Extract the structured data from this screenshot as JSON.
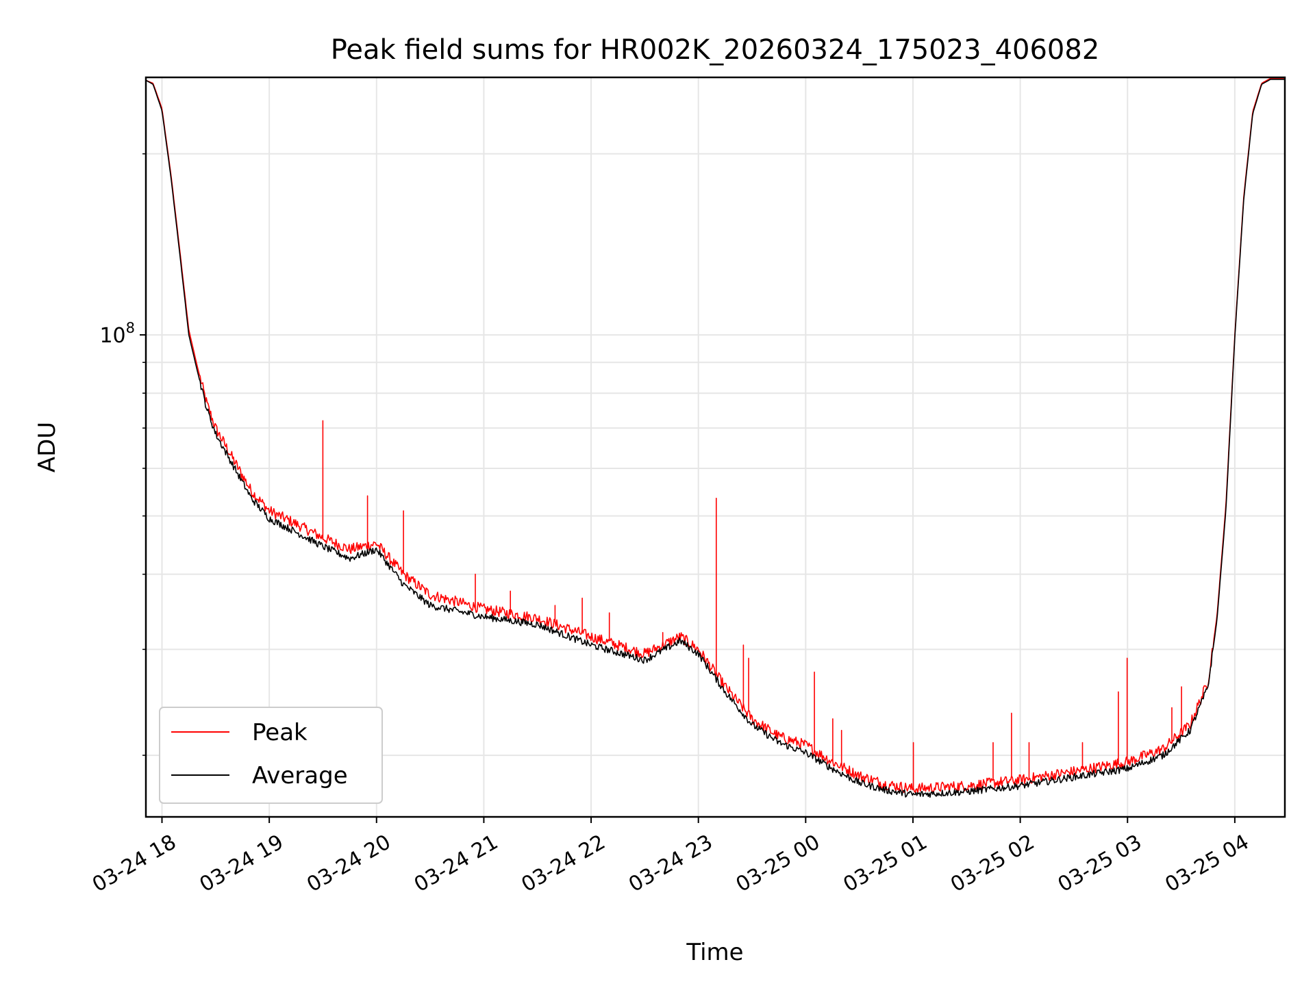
{
  "chart_data": {
    "type": "line",
    "title": "Peak field sums for HR002K_20260324_175023_406082",
    "xlabel": "Time",
    "ylabel": "ADU",
    "y_scale": "log",
    "ylim": [
      15800000,
      268000000
    ],
    "xlim": [
      "03-24 17:51",
      "03-25 04:28"
    ],
    "grid": true,
    "legend_position": "lower-left",
    "x_tick_labels": [
      "03-24 18",
      "03-24 19",
      "03-24 20",
      "03-24 21",
      "03-24 22",
      "03-24 23",
      "03-25 00",
      "03-25 01",
      "03-25 02",
      "03-25 03",
      "03-25 04"
    ],
    "x_ticks": [
      "03-24 18:00",
      "03-24 19:00",
      "03-24 20:00",
      "03-24 21:00",
      "03-24 22:00",
      "03-24 23:00",
      "03-25 00:00",
      "03-25 01:00",
      "03-25 02:00",
      "03-25 03:00",
      "03-25 04:00"
    ],
    "y_tick_major": [
      {
        "value": 100000000,
        "base": "10",
        "exp": "8"
      }
    ],
    "y_tick_minor": [
      20000000,
      30000000,
      40000000,
      50000000,
      60000000,
      70000000,
      80000000,
      90000000,
      200000000
    ],
    "series": [
      {
        "name": "Peak",
        "color": "#ff0000",
        "x": [
          "03-24 17:51",
          "03-24 17:55",
          "03-24 18:00",
          "03-24 18:05",
          "03-24 18:10",
          "03-24 18:15",
          "03-24 18:20",
          "03-24 18:25",
          "03-24 18:30",
          "03-24 18:40",
          "03-24 18:50",
          "03-24 19:00",
          "03-24 19:15",
          "03-24 19:30",
          "03-24 19:45",
          "03-24 20:00",
          "03-24 20:15",
          "03-24 20:30",
          "03-24 21:00",
          "03-24 21:30",
          "03-24 22:00",
          "03-24 22:30",
          "03-24 22:50",
          "03-24 23:00",
          "03-24 23:15",
          "03-24 23:30",
          "03-24 23:45",
          "03-25 00:00",
          "03-25 00:15",
          "03-25 00:30",
          "03-25 00:45",
          "03-25 01:00",
          "03-25 01:30",
          "03-25 02:00",
          "03-25 02:30",
          "03-25 03:00",
          "03-25 03:20",
          "03-25 03:35",
          "03-25 03:45",
          "03-25 03:50",
          "03-25 03:55",
          "03-25 04:00",
          "03-25 04:05",
          "03-25 04:10",
          "03-25 04:15",
          "03-25 04:20",
          "03-25 04:28"
        ],
        "values": [
          265000000,
          262000000,
          238000000,
          185000000,
          138000000,
          102000000,
          88000000,
          77000000,
          70000000,
          62000000,
          55000000,
          51000000,
          48500000,
          46000000,
          44000000,
          45000000,
          40000000,
          37000000,
          35000000,
          33800000,
          31500000,
          29500000,
          31500000,
          30000000,
          26000000,
          23000000,
          21500000,
          20800000,
          19500000,
          18500000,
          17900000,
          17600000,
          17800000,
          18200000,
          18800000,
          19500000,
          20500000,
          22500000,
          26500000,
          34000000,
          52000000,
          100000000,
          170000000,
          235000000,
          262000000,
          267000000,
          267000000
        ],
        "spikes": [
          {
            "x": "03-24 19:30",
            "value": 72000000
          },
          {
            "x": "03-24 19:55",
            "value": 54000000
          },
          {
            "x": "03-24 20:15",
            "value": 51000000
          },
          {
            "x": "03-24 20:55",
            "value": 40000000
          },
          {
            "x": "03-24 21:15",
            "value": 37500000
          },
          {
            "x": "03-24 21:40",
            "value": 35500000
          },
          {
            "x": "03-24 21:55",
            "value": 36500000
          },
          {
            "x": "03-24 22:10",
            "value": 34500000
          },
          {
            "x": "03-24 22:40",
            "value": 32000000
          },
          {
            "x": "03-24 23:10",
            "value": 53500000
          },
          {
            "x": "03-24 23:25",
            "value": 30500000
          },
          {
            "x": "03-24 23:28",
            "value": 29000000
          },
          {
            "x": "03-25 00:05",
            "value": 27500000
          },
          {
            "x": "03-25 00:15",
            "value": 23000000
          },
          {
            "x": "03-25 00:20",
            "value": 22000000
          },
          {
            "x": "03-25 01:00",
            "value": 21000000
          },
          {
            "x": "03-25 01:45",
            "value": 21000000
          },
          {
            "x": "03-25 01:55",
            "value": 23500000
          },
          {
            "x": "03-25 02:05",
            "value": 21000000
          },
          {
            "x": "03-25 02:35",
            "value": 21000000
          },
          {
            "x": "03-25 02:55",
            "value": 25500000
          },
          {
            "x": "03-25 03:00",
            "value": 29000000
          },
          {
            "x": "03-25 03:25",
            "value": 24000000
          },
          {
            "x": "03-25 03:30",
            "value": 26000000
          }
        ]
      },
      {
        "name": "Average",
        "color": "#000000",
        "x": [
          "03-24 17:51",
          "03-24 17:55",
          "03-24 18:00",
          "03-24 18:05",
          "03-24 18:10",
          "03-24 18:15",
          "03-24 18:20",
          "03-24 18:25",
          "03-24 18:30",
          "03-24 18:40",
          "03-24 18:50",
          "03-24 19:00",
          "03-24 19:15",
          "03-24 19:30",
          "03-24 19:45",
          "03-24 20:00",
          "03-24 20:15",
          "03-24 20:30",
          "03-24 21:00",
          "03-24 21:30",
          "03-24 22:00",
          "03-24 22:30",
          "03-24 22:50",
          "03-24 23:00",
          "03-24 23:15",
          "03-24 23:30",
          "03-24 23:45",
          "03-25 00:00",
          "03-25 00:15",
          "03-25 00:30",
          "03-25 00:45",
          "03-25 01:00",
          "03-25 01:30",
          "03-25 02:00",
          "03-25 02:30",
          "03-25 03:00",
          "03-25 03:20",
          "03-25 03:35",
          "03-25 03:45",
          "03-25 03:50",
          "03-25 03:55",
          "03-25 04:00",
          "03-25 04:05",
          "03-25 04:10",
          "03-25 04:15",
          "03-25 04:20",
          "03-25 04:28"
        ],
        "values": [
          265000000,
          261000000,
          236000000,
          183000000,
          136000000,
          100000000,
          86500000,
          75500000,
          68500000,
          60500000,
          53500000,
          49500000,
          47000000,
          44500000,
          42500000,
          44000000,
          38500000,
          35500000,
          34000000,
          33000000,
          30500000,
          28800000,
          31000000,
          29500000,
          25500000,
          22500000,
          21000000,
          20200000,
          19000000,
          18000000,
          17500000,
          17200000,
          17400000,
          17800000,
          18400000,
          19000000,
          20000000,
          22000000,
          26000000,
          33500000,
          51000000,
          99000000,
          168000000,
          233000000,
          261000000,
          266000000,
          266000000
        ]
      }
    ]
  }
}
